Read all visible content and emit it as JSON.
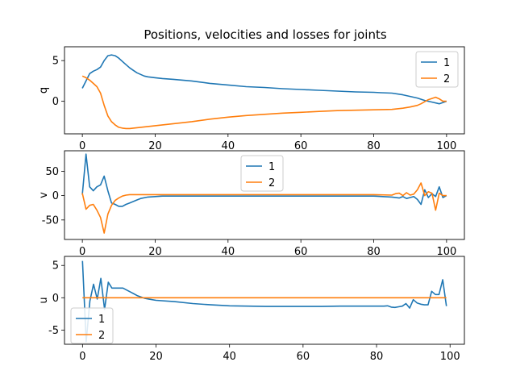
{
  "chart_data": {
    "type": "line",
    "title": "Positions, velocities and losses for joints",
    "colors": {
      "series_1": "#1f77b4",
      "series_2": "#ff7f0e"
    },
    "subplots": [
      {
        "name": "positions",
        "ylabel": "q",
        "xlim": [
          -4.9,
          104.9
        ],
        "ylim": [
          -4.0,
          6.7
        ],
        "xticks": [
          0,
          20,
          40,
          60,
          80,
          100
        ],
        "yticks": [
          0,
          5
        ],
        "legend": {
          "placement": "top-right",
          "entries": [
            "1",
            "2"
          ]
        },
        "series": [
          {
            "name": "1",
            "x": [
              0,
              1,
              2,
              3,
              4,
              5,
              6,
              7,
              8,
              9,
              10,
              11,
              12,
              13,
              14,
              15,
              16,
              17,
              18,
              20,
              22,
              25,
              30,
              35,
              40,
              45,
              50,
              55,
              60,
              65,
              70,
              75,
              80,
              82,
              85,
              88,
              90,
              92,
              94,
              96,
              98,
              100
            ],
            "y": [
              1.6,
              2.5,
              3.4,
              3.7,
              3.9,
              4.2,
              5.0,
              5.6,
              5.7,
              5.6,
              5.3,
              4.9,
              4.5,
              4.1,
              3.8,
              3.5,
              3.3,
              3.1,
              3.0,
              2.9,
              2.8,
              2.7,
              2.5,
              2.2,
              2.0,
              1.8,
              1.7,
              1.55,
              1.45,
              1.35,
              1.25,
              1.15,
              1.1,
              1.05,
              1.0,
              0.8,
              0.6,
              0.4,
              0.1,
              -0.1,
              -0.3,
              0.0
            ]
          },
          {
            "name": "2",
            "x": [
              0,
              1,
              2,
              3,
              4,
              5,
              6,
              7,
              8,
              9,
              10,
              11,
              12,
              13,
              14,
              15,
              16,
              18,
              20,
              22,
              25,
              30,
              35,
              40,
              45,
              50,
              55,
              60,
              65,
              70,
              75,
              80,
              85,
              88,
              90,
              92,
              93,
              95,
              97,
              98,
              99,
              100
            ],
            "y": [
              3.1,
              2.9,
              2.6,
              2.2,
              1.8,
              1.0,
              -0.5,
              -1.8,
              -2.5,
              -2.9,
              -3.2,
              -3.3,
              -3.35,
              -3.35,
              -3.3,
              -3.25,
              -3.2,
              -3.1,
              -3.0,
              -2.9,
              -2.75,
              -2.5,
              -2.2,
              -1.95,
              -1.75,
              -1.6,
              -1.45,
              -1.35,
              -1.25,
              -1.15,
              -1.1,
              -1.05,
              -1.0,
              -0.85,
              -0.7,
              -0.5,
              -0.3,
              0.2,
              0.5,
              0.3,
              0.0,
              0.0
            ]
          }
        ]
      },
      {
        "name": "velocities",
        "ylabel": "v",
        "xlim": [
          -4.9,
          104.9
        ],
        "ylim": [
          -90,
          92
        ],
        "xticks": [
          0,
          20,
          40,
          60,
          80,
          100
        ],
        "yticks": [
          -50,
          0,
          50
        ],
        "legend": {
          "placement": "top-center",
          "entries": [
            "1",
            "2"
          ]
        },
        "series": [
          {
            "name": "1",
            "x": [
              0,
              1,
              2,
              3,
              4,
              5,
              6,
              7,
              8,
              9,
              10,
              11,
              12,
              13,
              14,
              15,
              16,
              18,
              20,
              22,
              25,
              30,
              40,
              50,
              60,
              70,
              80,
              85,
              87,
              88,
              89,
              90,
              91,
              92,
              93,
              94,
              95,
              96,
              97,
              98,
              99,
              100
            ],
            "y": [
              2,
              85,
              18,
              10,
              18,
              22,
              40,
              10,
              -15,
              -18,
              -22,
              -22,
              -18,
              -15,
              -12,
              -9,
              -6,
              -3,
              -2,
              -1,
              -1,
              -1,
              -1,
              -1,
              -1,
              -1,
              -1,
              -3,
              -5,
              -2,
              -6,
              -4,
              -2,
              -8,
              -18,
              12,
              -4,
              4,
              -2,
              18,
              -4,
              0
            ]
          },
          {
            "name": "2",
            "x": [
              0,
              1,
              2,
              3,
              4,
              5,
              6,
              7,
              8,
              9,
              10,
              11,
              12,
              13,
              14,
              15,
              16,
              18,
              20,
              25,
              30,
              40,
              50,
              60,
              70,
              80,
              85,
              86,
              87,
              88,
              89,
              90,
              91,
              92,
              93,
              94,
              95,
              96,
              97,
              98,
              99,
              100
            ],
            "y": [
              5,
              -28,
              -20,
              -18,
              -30,
              -45,
              -77,
              -38,
              -20,
              -10,
              -5,
              -1,
              1,
              2,
              2,
              2,
              2,
              2,
              2,
              2,
              2,
              2,
              2,
              2,
              2,
              2,
              1,
              4,
              5,
              0,
              6,
              1,
              3,
              12,
              26,
              0,
              8,
              5,
              -30,
              5,
              0,
              0
            ]
          }
        ]
      },
      {
        "name": "losses",
        "ylabel": "u",
        "xlim": [
          -4.9,
          103.9
        ],
        "ylim": [
          -7.2,
          6.4
        ],
        "xticks": [
          0,
          20,
          40,
          60,
          80,
          100
        ],
        "yticks": [
          -5,
          0,
          5
        ],
        "legend": {
          "placement": "bottom-left",
          "entries": [
            "1",
            "2"
          ]
        },
        "series": [
          {
            "name": "1",
            "x": [
              0,
              1,
              2,
              3,
              4,
              5,
              6,
              7,
              8,
              9,
              10,
              11,
              12,
              13,
              14,
              15,
              16,
              17,
              18,
              20,
              25,
              30,
              35,
              40,
              45,
              50,
              55,
              60,
              65,
              70,
              75,
              80,
              82,
              83,
              84,
              85,
              86,
              87,
              88,
              89,
              90,
              91,
              92,
              93,
              94,
              95,
              96,
              97,
              98,
              99
            ],
            "y": [
              5.7,
              -6.8,
              -0.5,
              2.1,
              -0.2,
              3.0,
              -1.8,
              2.4,
              1.5,
              1.5,
              1.5,
              1.5,
              1.2,
              0.9,
              0.6,
              0.3,
              0.1,
              -0.1,
              -0.2,
              -0.4,
              -0.6,
              -0.9,
              -1.1,
              -1.25,
              -1.3,
              -1.35,
              -1.35,
              -1.35,
              -1.35,
              -1.3,
              -1.3,
              -1.3,
              -1.3,
              -1.25,
              -1.45,
              -1.5,
              -1.4,
              -1.3,
              -0.9,
              -1.6,
              -0.3,
              -0.8,
              -1.0,
              -1.1,
              -1.1,
              1.0,
              0.5,
              0.5,
              2.8,
              -1.3
            ]
          },
          {
            "name": "2",
            "x": [
              0,
              99
            ],
            "y": [
              0.0,
              0.0
            ]
          }
        ]
      }
    ]
  }
}
